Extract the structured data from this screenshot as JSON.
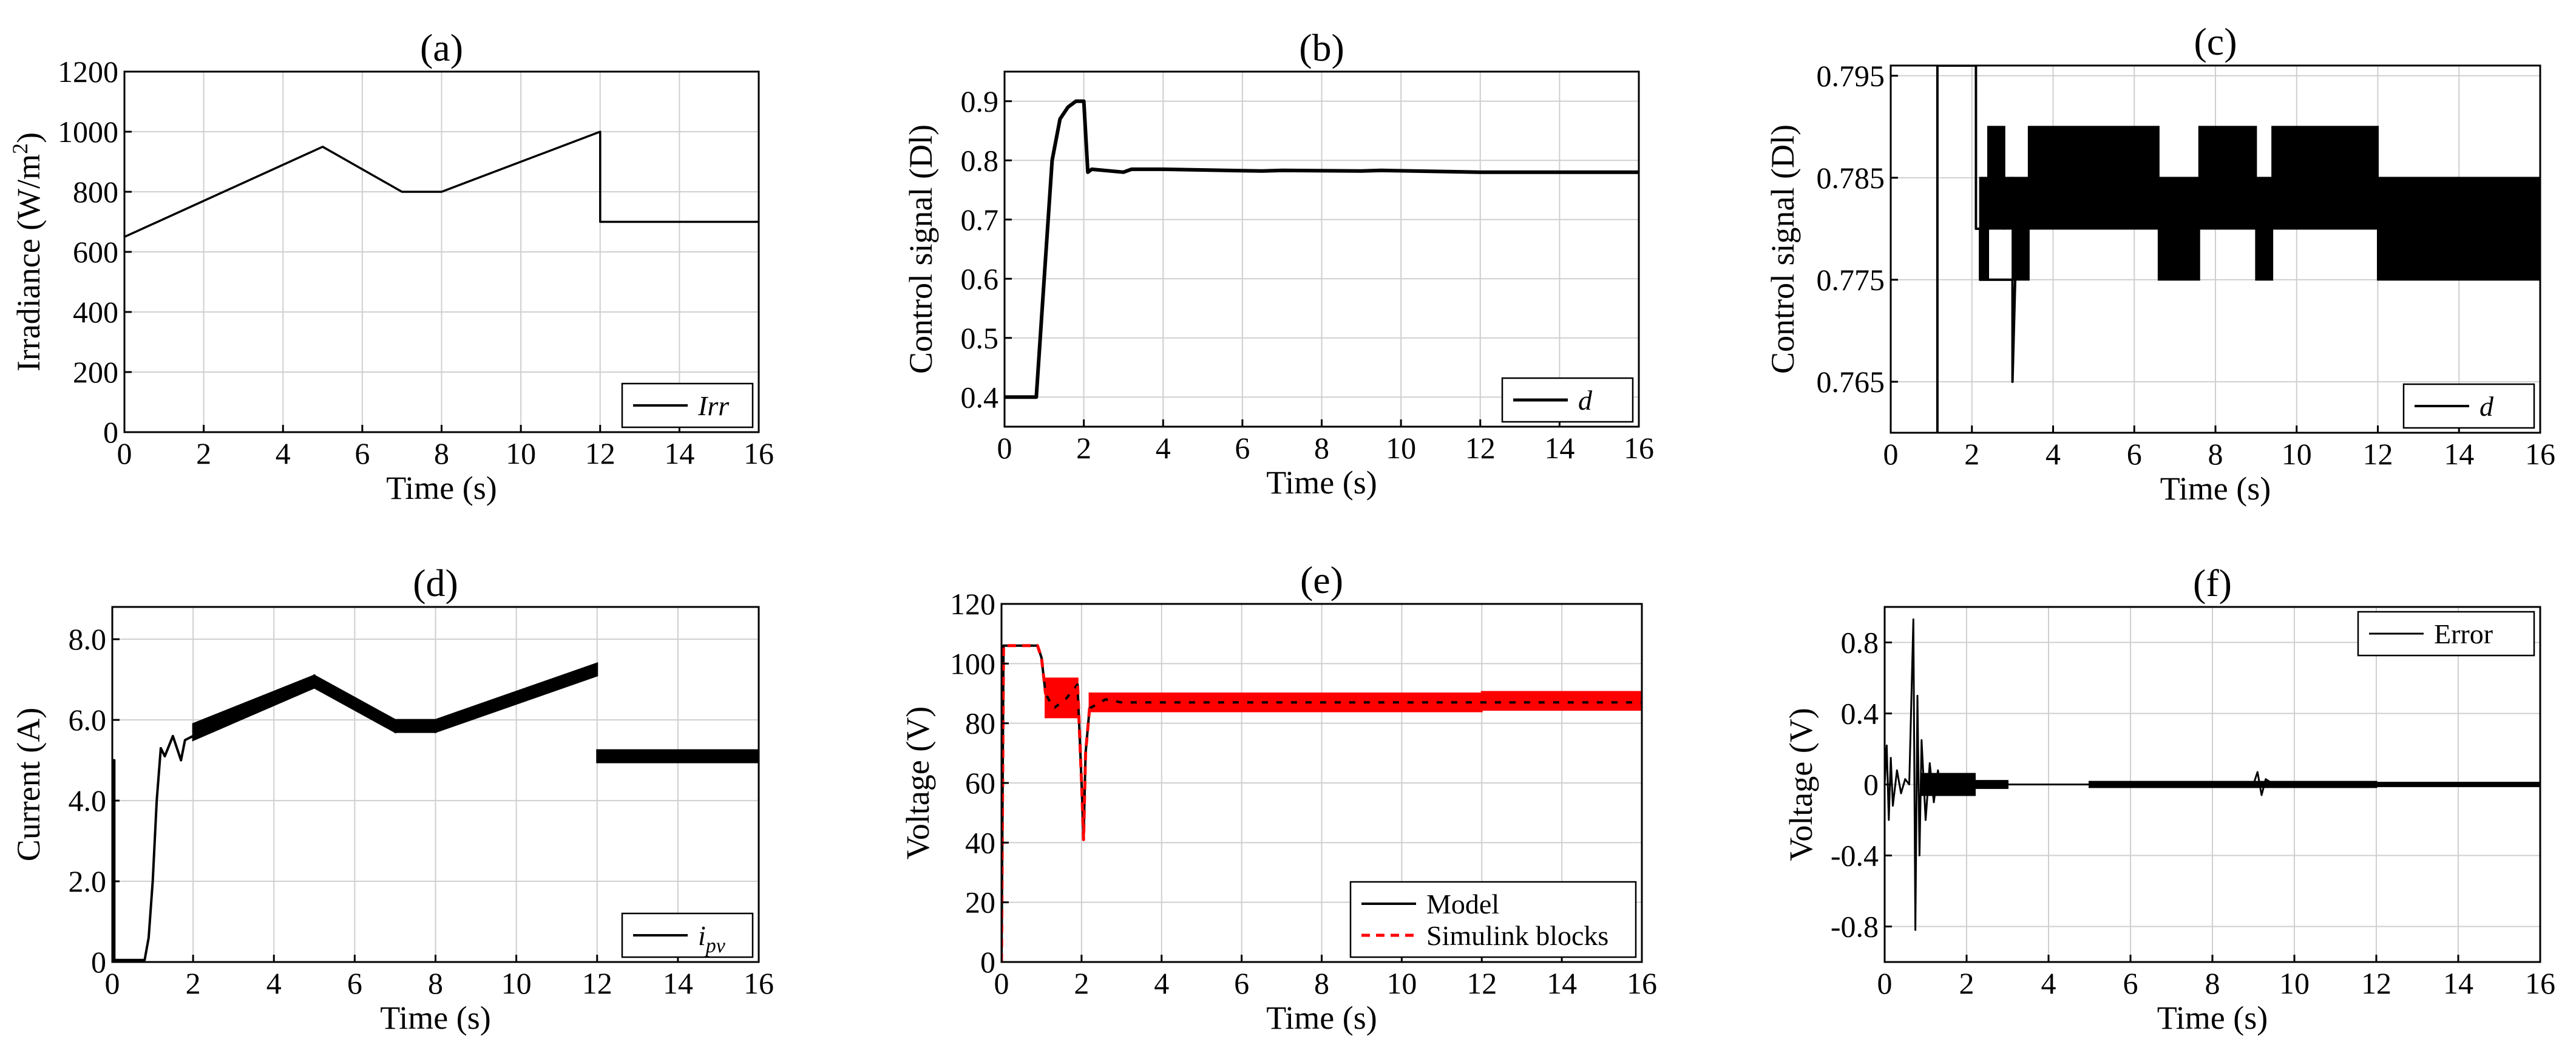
{
  "colors": {
    "model": "#000000",
    "simulink": "#ff0000",
    "grid": "#cfcfcf",
    "axis": "#000000"
  },
  "chart_data": [
    {
      "id": "a",
      "type": "line",
      "title": "(a)",
      "xlabel": "Time (s)",
      "ylabel_main": "Irradiance (W/m",
      "ylabel_sup": "2",
      "ylabel_end": ")",
      "xlim": [
        0,
        16
      ],
      "ylim": [
        0,
        1200
      ],
      "xticks": [
        0,
        2,
        4,
        6,
        8,
        10,
        12,
        14,
        16
      ],
      "xtick_labels": [
        "0",
        "2",
        "4",
        "6",
        "8",
        "10",
        "12",
        "14",
        "16"
      ],
      "yticks": [
        0,
        200,
        400,
        600,
        800,
        1000,
        1200
      ],
      "ytick_labels": [
        "0",
        "200",
        "400",
        "600",
        "800",
        "1000",
        "1200"
      ],
      "grid": true,
      "legend_position": "bottom-right",
      "series": [
        {
          "name": "Irr",
          "style": "solid",
          "color": "#000000",
          "x": [
            0,
            5,
            7,
            8,
            12,
            12,
            16
          ],
          "y": [
            650,
            950,
            800,
            800,
            1000,
            700,
            700
          ]
        }
      ]
    },
    {
      "id": "b",
      "type": "line",
      "title": "(b)",
      "xlabel": "Time (s)",
      "ylabel_main": "Control signal (Dl)",
      "xlim": [
        0,
        16
      ],
      "ylim": [
        0.35,
        0.95
      ],
      "xticks": [
        0,
        2,
        4,
        6,
        8,
        10,
        12,
        14,
        16
      ],
      "xtick_labels": [
        "0",
        "2",
        "4",
        "6",
        "8",
        "10",
        "12",
        "14",
        "16"
      ],
      "yticks": [
        0.4,
        0.5,
        0.6,
        0.7,
        0.8,
        0.9
      ],
      "ytick_labels": [
        "0.4",
        "0.5",
        "0.6",
        "0.7",
        "0.8",
        "0.9"
      ],
      "grid": true,
      "legend_position": "bottom-right",
      "series": [
        {
          "name": "d",
          "style": "solid",
          "color": "#000000",
          "width": 6,
          "x": [
            0,
            0.8,
            1.0,
            1.2,
            1.4,
            1.6,
            1.8,
            2.0,
            2.1,
            2.2,
            3.0,
            3.2,
            4,
            6.5,
            7,
            9,
            9.5,
            12,
            16
          ],
          "y": [
            0.4,
            0.4,
            0.6,
            0.8,
            0.87,
            0.89,
            0.9,
            0.9,
            0.78,
            0.785,
            0.78,
            0.785,
            0.785,
            0.782,
            0.783,
            0.782,
            0.783,
            0.78,
            0.78
          ]
        }
      ]
    },
    {
      "id": "c",
      "type": "line",
      "title": "(c)",
      "xlabel": "Time (s)",
      "ylabel_main": "Control signal (Dl)",
      "xlim": [
        0,
        16
      ],
      "ylim": [
        0.76,
        0.796
      ],
      "xticks": [
        0,
        2,
        4,
        6,
        8,
        10,
        12,
        14,
        16
      ],
      "xtick_labels": [
        "0",
        "2",
        "4",
        "6",
        "8",
        "10",
        "12",
        "14",
        "16"
      ],
      "yticks": [
        0.765,
        0.775,
        0.785,
        0.795
      ],
      "ytick_labels": [
        "0.765",
        "0.775",
        "0.785",
        "0.795"
      ],
      "grid": true,
      "legend_position": "bottom-right",
      "series": [
        {
          "name": "d",
          "style": "solid",
          "color": "#000000",
          "width": 4,
          "x": [
            1.15,
            1.15,
            2.1,
            2.1,
            2.2,
            2.2,
            3.0,
            3.0,
            3.1
          ],
          "y": [
            0.76,
            0.796,
            0.796,
            0.78,
            0.78,
            0.775,
            0.775,
            0.765,
            0.78
          ]
        }
      ],
      "bands": [
        {
          "x0": 2.2,
          "x1": 2.4,
          "ymin": 0.775,
          "ymax": 0.785
        },
        {
          "x0": 2.4,
          "x1": 2.8,
          "ymin": 0.78,
          "ymax": 0.79
        },
        {
          "x0": 2.8,
          "x1": 3.0,
          "ymin": 0.78,
          "ymax": 0.785
        },
        {
          "x0": 3.0,
          "x1": 3.4,
          "ymin": 0.775,
          "ymax": 0.785
        },
        {
          "x0": 3.4,
          "x1": 6.6,
          "ymin": 0.78,
          "ymax": 0.79
        },
        {
          "x0": 6.6,
          "x1": 7.6,
          "ymin": 0.775,
          "ymax": 0.785
        },
        {
          "x0": 7.6,
          "x1": 9.0,
          "ymin": 0.78,
          "ymax": 0.79
        },
        {
          "x0": 9.0,
          "x1": 9.4,
          "ymin": 0.775,
          "ymax": 0.785
        },
        {
          "x0": 9.4,
          "x1": 12.0,
          "ymin": 0.78,
          "ymax": 0.79
        },
        {
          "x0": 12.0,
          "x1": 16.0,
          "ymin": 0.775,
          "ymax": 0.785
        }
      ]
    },
    {
      "id": "d",
      "type": "line",
      "title": "(d)",
      "xlabel": "Time (s)",
      "ylabel_main": "Current (A)",
      "xlim": [
        0,
        16
      ],
      "ylim": [
        0,
        8.8
      ],
      "xticks": [
        0,
        2,
        4,
        6,
        8,
        10,
        12,
        14,
        16
      ],
      "xtick_labels": [
        "0",
        "2",
        "4",
        "6",
        "8",
        "10",
        "12",
        "14",
        "16"
      ],
      "yticks": [
        0,
        2,
        4,
        6,
        8
      ],
      "ytick_labels": [
        "0",
        "2.0",
        "4.0",
        "6.0",
        "8.0"
      ],
      "grid": true,
      "legend_position": "bottom-right",
      "series": [
        {
          "name": "i",
          "name_sub": "pv",
          "style": "solid",
          "color": "#000000",
          "width": 4,
          "x": [
            0,
            0.05,
            0.05,
            0.8,
            0.9,
            1.0,
            1.1,
            1.2,
            1.3,
            1.5,
            1.7,
            1.8,
            2.0
          ],
          "y": [
            5.0,
            5.0,
            0.05,
            0.05,
            0.6,
            2.0,
            4.0,
            5.3,
            5.1,
            5.6,
            5.0,
            5.5,
            5.6
          ]
        }
      ],
      "bands": [
        {
          "x0": 2.0,
          "x1": 5.0,
          "ymin0": 5.5,
          "ymax0": 5.9,
          "ymin1": 6.8,
          "ymax1": 7.1
        },
        {
          "x0": 5.0,
          "x1": 7.0,
          "ymin0": 6.8,
          "ymax0": 7.1,
          "ymin1": 5.7,
          "ymax1": 6.0
        },
        {
          "x0": 7.0,
          "x1": 8.0,
          "ymin0": 5.7,
          "ymax0": 6.0,
          "ymin1": 5.7,
          "ymax1": 6.0
        },
        {
          "x0": 8.0,
          "x1": 12.0,
          "ymin0": 5.7,
          "ymax0": 6.0,
          "ymin1": 7.1,
          "ymax1": 7.4
        },
        {
          "x0": 12.0,
          "x1": 16.0,
          "ymin0": 4.95,
          "ymax0": 5.25,
          "ymin1": 4.95,
          "ymax1": 5.25
        }
      ]
    },
    {
      "id": "e",
      "type": "line",
      "title": "(e)",
      "xlabel": "Time (s)",
      "ylabel_main": "Voltage (V)",
      "xlim": [
        0,
        16
      ],
      "ylim": [
        0,
        120
      ],
      "xticks": [
        0,
        2,
        4,
        6,
        8,
        10,
        12,
        14,
        16
      ],
      "xtick_labels": [
        "0",
        "2",
        "4",
        "6",
        "8",
        "10",
        "12",
        "14",
        "16"
      ],
      "yticks": [
        0,
        20,
        40,
        60,
        80,
        100,
        120
      ],
      "ytick_labels": [
        "0",
        "20",
        "40",
        "60",
        "80",
        "100",
        "120"
      ],
      "grid": true,
      "legend_position": "bottom-right",
      "series": [
        {
          "name": "Model",
          "style": "solid",
          "color": "#000000",
          "width": 4,
          "x": [
            0,
            0.05,
            0.1,
            0.9,
            1.0,
            1.1,
            1.3,
            1.6,
            1.9,
            2.0,
            2.05,
            2.1,
            2.2,
            2.6,
            3,
            16
          ],
          "y": [
            0,
            106,
            106,
            106,
            102,
            90,
            85,
            88,
            93,
            60,
            41,
            70,
            85,
            88,
            87,
            87
          ]
        },
        {
          "name": "Simulink blocks",
          "style": "dashed",
          "color": "#ff0000",
          "width": 5,
          "x": [
            0,
            0.05,
            0.1,
            0.9,
            1.0,
            1.1,
            1.3,
            1.6,
            1.9,
            2.0,
            2.05,
            2.1,
            2.2,
            2.6,
            3,
            16
          ],
          "y": [
            0,
            106,
            106,
            106,
            102,
            90,
            85,
            88,
            93,
            60,
            41,
            70,
            85,
            88,
            87,
            87
          ]
        }
      ],
      "bands": [
        {
          "x0": 1.1,
          "x1": 1.9,
          "ymin": 82,
          "ymax": 95,
          "color": "#ff0000"
        },
        {
          "x0": 2.2,
          "x1": 12.0,
          "ymin": 84,
          "ymax": 90,
          "color": "#ff0000"
        },
        {
          "x0": 12.0,
          "x1": 16.0,
          "ymin": 84.5,
          "ymax": 90.5,
          "color": "#ff0000"
        }
      ]
    },
    {
      "id": "f",
      "type": "line",
      "title": "(f)",
      "xlabel": "Time (s)",
      "ylabel_main": "Voltage (V)",
      "xlim": [
        0,
        16
      ],
      "ylim": [
        -1,
        1
      ],
      "xticks": [
        0,
        2,
        4,
        6,
        8,
        10,
        12,
        14,
        16
      ],
      "xtick_labels": [
        "0",
        "2",
        "4",
        "6",
        "8",
        "10",
        "12",
        "14",
        "16"
      ],
      "yticks": [
        -0.8,
        -0.4,
        0,
        0.4,
        0.8
      ],
      "ytick_labels": [
        "-0.8",
        "-0.4",
        "0",
        "0.4",
        "0.8"
      ],
      "grid": true,
      "legend_position": "top-right",
      "series": [
        {
          "name": "Error",
          "style": "solid",
          "color": "#000000",
          "width": 3,
          "x": [
            0,
            0.05,
            0.1,
            0.15,
            0.2,
            0.3,
            0.4,
            0.5,
            0.6,
            0.7,
            0.75,
            0.8,
            0.85,
            0.9,
            1.0,
            1.1,
            1.2,
            1.3,
            1.4,
            1.5,
            1.6,
            1.8,
            2.0,
            2.2,
            2.6,
            3.0,
            4.0,
            9.0,
            9.1,
            9.2,
            9.3,
            9.5,
            16
          ],
          "y": [
            0,
            0.22,
            -0.2,
            0.15,
            -0.12,
            0.08,
            -0.05,
            0.03,
            0,
            0.93,
            -0.82,
            0.5,
            -0.4,
            0.25,
            -0.2,
            0.12,
            -0.1,
            0.08,
            -0.06,
            0.05,
            -0.04,
            0.02,
            -0.02,
            0.01,
            0.01,
            0,
            0,
            0,
            0.07,
            -0.06,
            0.03,
            0,
            0
          ]
        }
      ],
      "bands": [
        {
          "x0": 0.9,
          "x1": 2.2,
          "ymin": -0.06,
          "ymax": 0.06,
          "color": "#000000"
        },
        {
          "x0": 2.2,
          "x1": 3.0,
          "ymin": -0.02,
          "ymax": 0.02,
          "color": "#000000"
        },
        {
          "x0": 5.0,
          "x1": 12.0,
          "ymin": -0.015,
          "ymax": 0.015,
          "color": "#000000"
        },
        {
          "x0": 12.0,
          "x1": 16.0,
          "ymin": -0.01,
          "ymax": 0.01,
          "color": "#000000"
        }
      ]
    }
  ]
}
